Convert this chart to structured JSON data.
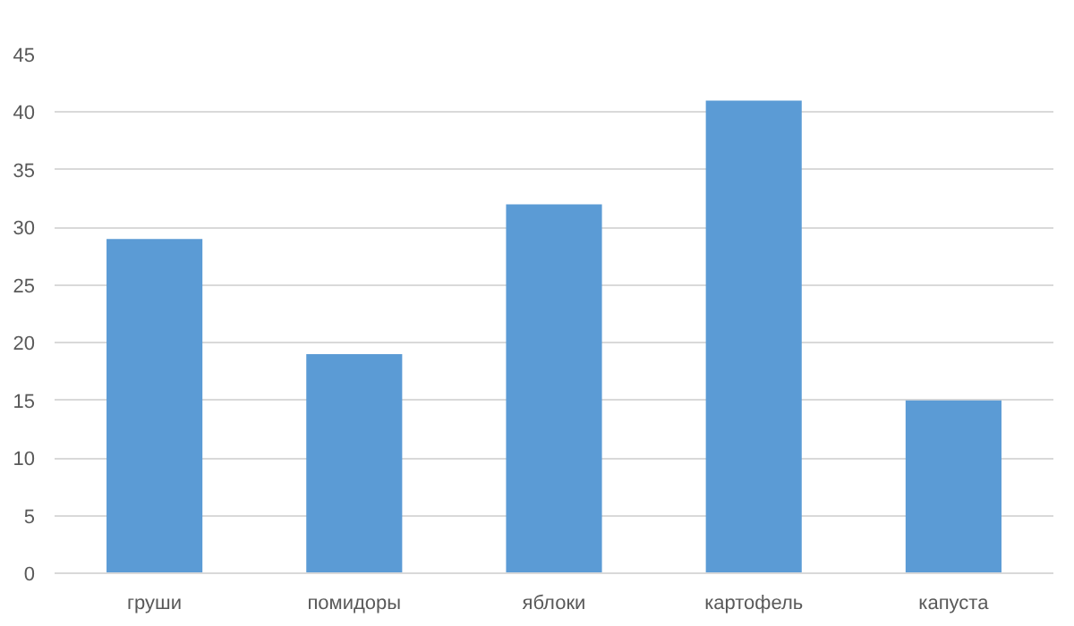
{
  "chart_data": {
    "type": "bar",
    "categories": [
      "груши",
      "помидоры",
      "яблоки",
      "картофель",
      "капуста"
    ],
    "values": [
      29,
      19,
      32,
      41,
      15
    ],
    "color": "#5b9bd5",
    "ylim": [
      0,
      45
    ],
    "yticks": [
      0,
      5,
      10,
      15,
      20,
      25,
      30,
      35,
      40,
      45
    ],
    "grid": "y"
  }
}
